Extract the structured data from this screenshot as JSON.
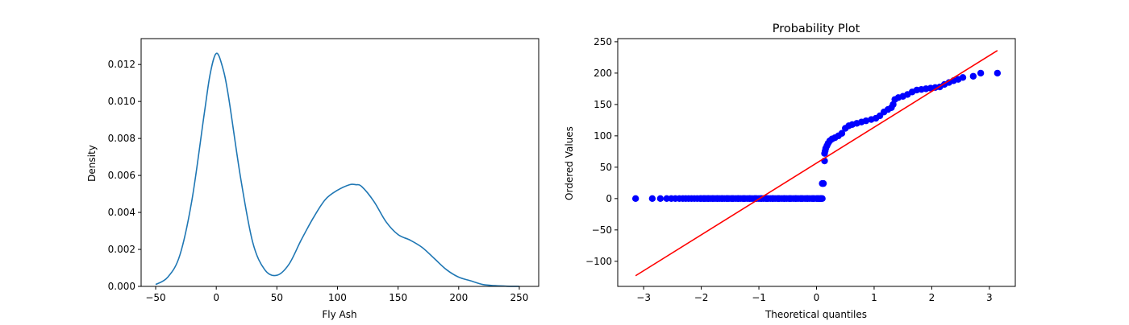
{
  "chart_data": [
    {
      "type": "line",
      "title": "",
      "xlabel": "Fly Ash",
      "ylabel": "Density",
      "xlim": [
        -62,
        266
      ],
      "ylim": [
        0,
        0.0134
      ],
      "xticks": [
        -50,
        0,
        50,
        100,
        150,
        200,
        250
      ],
      "xtick_labels": [
        "−50",
        "0",
        "50",
        "100",
        "150",
        "200",
        "250"
      ],
      "yticks": [
        0,
        0.002,
        0.004,
        0.006,
        0.008,
        0.01,
        0.012
      ],
      "ytick_labels": [
        "0.000",
        "0.002",
        "0.004",
        "0.006",
        "0.008",
        "0.010",
        "0.012"
      ],
      "grid": false,
      "series": [
        {
          "color": "#1f77b4",
          "x": [
            -50,
            -40,
            -30,
            -20,
            -10,
            -5,
            0,
            5,
            10,
            20,
            30,
            40,
            50,
            60,
            70,
            80,
            90,
            100,
            110,
            115,
            120,
            130,
            140,
            150,
            160,
            170,
            180,
            190,
            200,
            210,
            220,
            230,
            240,
            250
          ],
          "y": [
            0.0001,
            0.0005,
            0.0017,
            0.0047,
            0.0093,
            0.0115,
            0.0126,
            0.0119,
            0.0103,
            0.0059,
            0.0024,
            0.0009,
            0.0006,
            0.0012,
            0.0025,
            0.0037,
            0.0047,
            0.0052,
            0.0055,
            0.0055,
            0.0054,
            0.0046,
            0.0035,
            0.0028,
            0.0025,
            0.0021,
            0.0015,
            0.0009,
            0.0005,
            0.0003,
            0.0001,
            4e-05,
            1e-05,
            0.0
          ]
        }
      ]
    },
    {
      "type": "scatter",
      "title": "Probability Plot",
      "xlabel": "Theoretical quantiles",
      "ylabel": "Ordered Values",
      "xlim": [
        -3.45,
        3.45
      ],
      "ylim": [
        -140,
        255
      ],
      "xticks": [
        -3,
        -2,
        -1,
        0,
        1,
        2,
        3
      ],
      "xtick_labels": [
        "−3",
        "−2",
        "−1",
        "0",
        "1",
        "2",
        "3"
      ],
      "yticks": [
        -100,
        -50,
        0,
        50,
        100,
        150,
        200,
        250
      ],
      "ytick_labels": [
        "−100",
        "−50",
        "0",
        "50",
        "100",
        "150",
        "200",
        "250"
      ],
      "grid": false,
      "points_color": "#0000ff",
      "fit_line": {
        "color": "#ff0000",
        "x": [
          -3.14,
          3.14
        ],
        "y": [
          -123,
          236
        ]
      },
      "points": {
        "x": [
          -3.14,
          -2.85,
          -2.71,
          -2.6,
          -2.52,
          -2.45,
          -2.38,
          -2.32,
          -2.27,
          -2.22,
          -2.17,
          -2.12,
          -2.07,
          -2.02,
          -1.95,
          -1.88,
          -1.8,
          -1.72,
          -1.64,
          -1.55,
          -1.46,
          -1.36,
          -1.26,
          -1.16,
          -1.06,
          -0.96,
          -0.86,
          -0.76,
          -0.66,
          -0.56,
          -0.46,
          -0.36,
          -0.26,
          -0.16,
          -0.06,
          0.02,
          0.07,
          0.1,
          0.1,
          0.12,
          0.14,
          0.14,
          0.15,
          0.16,
          0.18,
          0.2,
          0.23,
          0.27,
          0.32,
          0.38,
          0.44,
          0.5,
          0.56,
          0.62,
          0.7,
          0.78,
          0.86,
          0.95,
          1.03,
          1.1,
          1.17,
          1.24,
          1.3,
          1.33,
          1.36,
          1.42,
          1.5,
          1.58,
          1.66,
          1.74,
          1.82,
          1.9,
          1.98,
          2.06,
          2.14,
          2.22,
          2.3,
          2.38,
          2.46,
          2.54,
          2.72,
          2.85,
          3.14
        ],
        "y": [
          0,
          0,
          0,
          0,
          0,
          0,
          0,
          0,
          0,
          0,
          0,
          0,
          0,
          0,
          0,
          0,
          0,
          0,
          0,
          0,
          0,
          0,
          0,
          0,
          0,
          0,
          0,
          0,
          0,
          0,
          0,
          0,
          0,
          0,
          0,
          0,
          0,
          0,
          24,
          24,
          60,
          72,
          76,
          80,
          84,
          88,
          92,
          95,
          97,
          100,
          104,
          112,
          116,
          118,
          120,
          122,
          124,
          126,
          128,
          132,
          138,
          142,
          145,
          150,
          158,
          161,
          163,
          166,
          170,
          173,
          174,
          175,
          176,
          177,
          178,
          182,
          185,
          188,
          190,
          193,
          195,
          200,
          200
        ]
      }
    }
  ]
}
